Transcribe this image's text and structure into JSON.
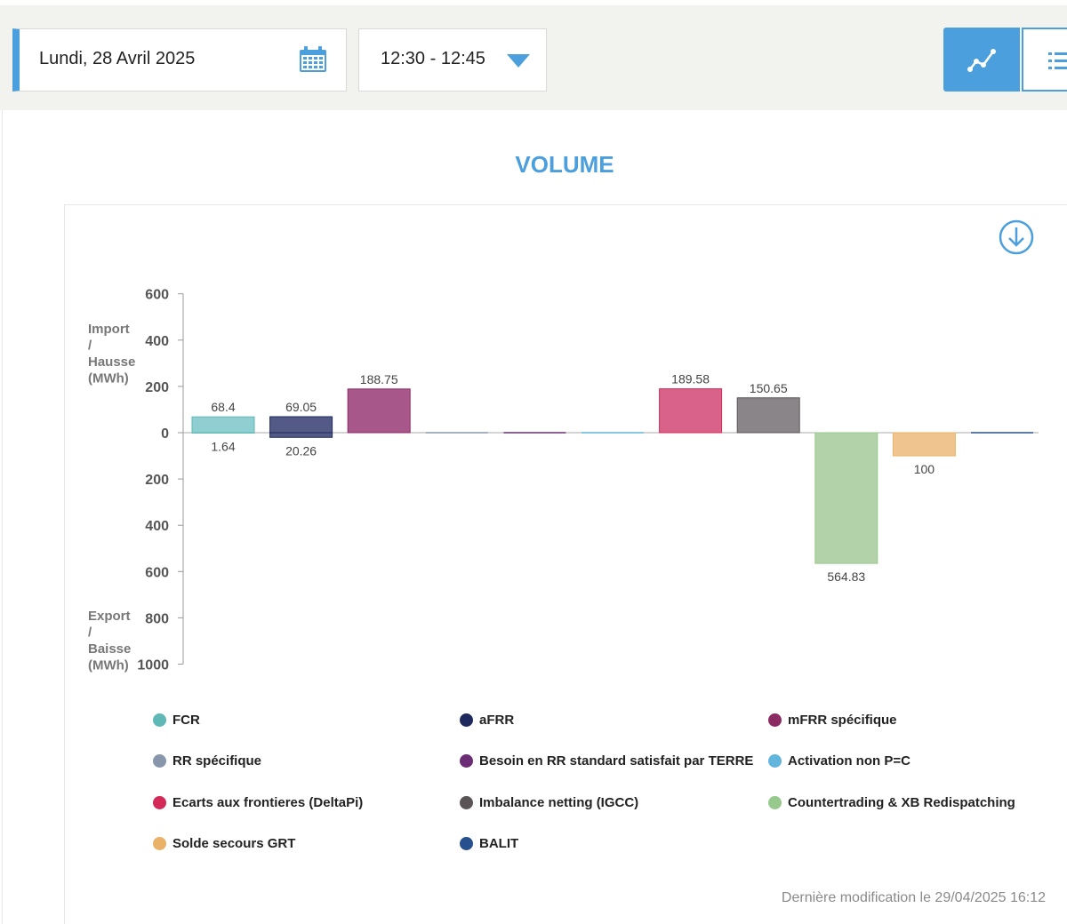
{
  "header": {
    "date_label": "Lundi, 28 Avril 2025",
    "time_range_label": "12:30 - 12:45",
    "accent_color": "#4a9fdc"
  },
  "chart_title": "VOLUME",
  "chart_data": {
    "type": "bar",
    "title": "VOLUME",
    "ylabel_top": [
      "Import",
      "/",
      "Hausse",
      "(MWh)"
    ],
    "ylabel_bottom": [
      "Export",
      "/",
      "Baisse",
      "(MWh)"
    ],
    "ylim": [
      -1000,
      600
    ],
    "yticks": [
      600,
      400,
      200,
      0,
      -200,
      -400,
      -600,
      -800,
      -1000
    ],
    "ytick_labels": [
      "600",
      "400",
      "200",
      "0",
      "200",
      "400",
      "600",
      "800",
      "1000"
    ],
    "categories": [
      "FCR",
      "aFRR",
      "mFRR spécifique",
      "Besoin en RR standard satisfait par TERRE",
      "RR spécifique",
      "Activation non P=C",
      "Ecarts aux frontieres (DeltaPi)",
      "Imbalance netting (IGCC)",
      "Countertrading & XB Redispatching",
      "Solde secours GRT",
      "BALIT"
    ],
    "series": [
      {
        "values": [
          68.4,
          69.05,
          188.75,
          0,
          0,
          0,
          189.58,
          150.65,
          0,
          0,
          0
        ],
        "labels": [
          "68.4",
          "69.05",
          "188.75",
          "",
          "",
          "",
          "189.58",
          "150.65",
          "",
          "",
          ""
        ]
      },
      {
        "values": [
          -1.64,
          -20.26,
          0,
          0,
          0,
          0,
          0,
          0,
          -564.83,
          -100,
          0
        ],
        "labels": [
          "1.64",
          "20.26",
          "",
          "",
          "",
          "",
          "",
          "",
          "564.83",
          "100",
          ""
        ]
      }
    ],
    "bar_colors": [
      "#8fcfd1",
      "#525a85",
      "#a8578a",
      "#7c7c9e",
      "#7c4d80",
      "#8ec6dd",
      "#d9628a",
      "#8a8588",
      "#b2d3aa",
      "#f0c48f",
      "#3d5a94"
    ],
    "legend": [
      {
        "label": "FCR",
        "color": "#5fb8b6"
      },
      {
        "label": "aFRR",
        "color": "#1e2a5e"
      },
      {
        "label": "mFRR spécifique",
        "color": "#8c2a64"
      },
      {
        "label": "RR spécifique",
        "color": "#8796ab"
      },
      {
        "label": "Besoin en RR standard satisfait par TERRE",
        "color": "#6b2d73"
      },
      {
        "label": "Activation non P=C",
        "color": "#62b5dc"
      },
      {
        "label": "Ecarts aux frontieres (DeltaPi)",
        "color": "#d42a58"
      },
      {
        "label": "Imbalance netting (IGCC)",
        "color": "#5a5456"
      },
      {
        "label": "Countertrading & XB Redispatching",
        "color": "#97c98c"
      },
      {
        "label": "Solde secours GRT",
        "color": "#eab268"
      },
      {
        "label": "BALIT",
        "color": "#27508f"
      }
    ],
    "grid": false,
    "legend_position": "bottom"
  },
  "footer": {
    "last_modified": "Dernière modification le 29/04/2025 16:12"
  }
}
